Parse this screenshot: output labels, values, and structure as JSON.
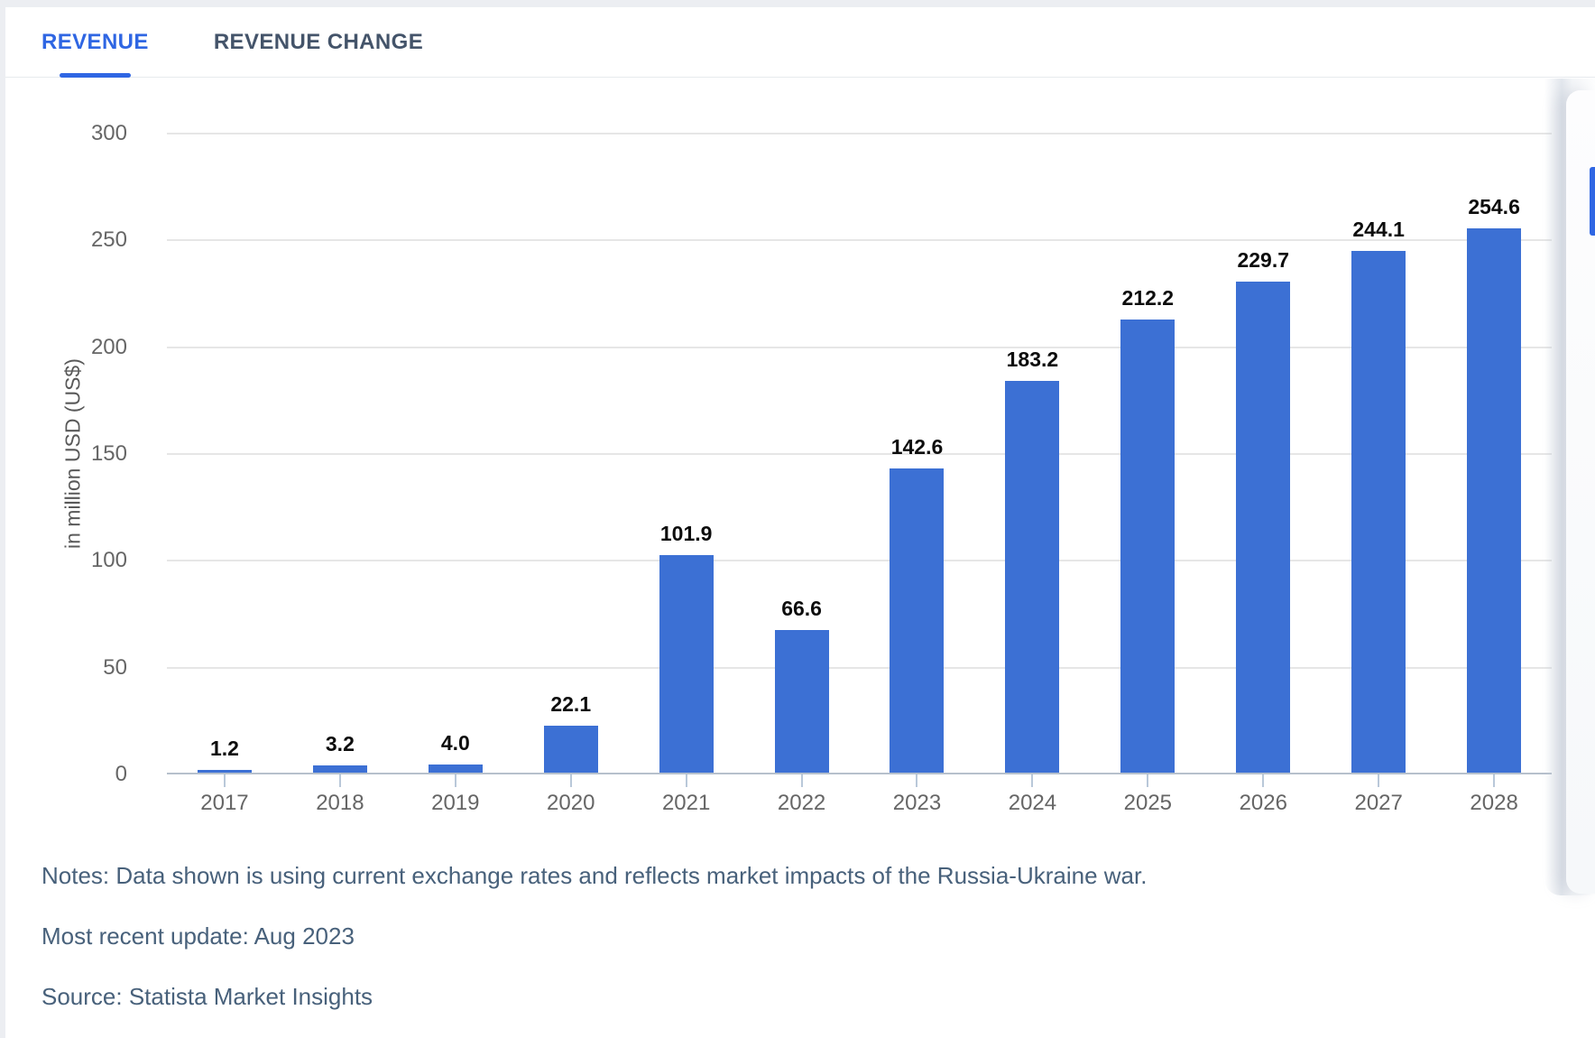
{
  "tabs": {
    "revenue": "REVENUE",
    "revenue_change": "REVENUE CHANGE"
  },
  "chart_data": {
    "type": "bar",
    "title": "",
    "categories": [
      "2017",
      "2018",
      "2019",
      "2020",
      "2021",
      "2022",
      "2023",
      "2024",
      "2025",
      "2026",
      "2027",
      "2028"
    ],
    "values": [
      1.2,
      3.2,
      4.0,
      22.1,
      101.9,
      66.6,
      142.6,
      183.2,
      212.2,
      229.7,
      244.1,
      254.6
    ],
    "value_labels": [
      "1.2",
      "3.2",
      "4.0",
      "22.1",
      "101.9",
      "66.6",
      "142.6",
      "183.2",
      "212.2",
      "229.7",
      "244.1",
      "254.6"
    ],
    "xlabel": "",
    "ylabel": "in million USD (US$)",
    "y_ticks": [
      0,
      50,
      100,
      150,
      200,
      250,
      300
    ],
    "ylim": [
      0,
      300
    ],
    "grid": "horizontal",
    "legend": "none",
    "bar_color": "#3C70D4"
  },
  "footer": {
    "notes_line": "Notes: Data shown is using current exchange rates and reflects market impacts of the Russia-Ukraine war.",
    "update_line": "Most recent update: Aug 2023",
    "source_line": "Source: Statista Market Insights"
  },
  "colors": {
    "accent": "#2F66E3",
    "bar": "#3C70D4",
    "tab_inactive": "#44546A",
    "notes_text": "#48617B",
    "tick_label": "#666666",
    "grid_line": "#E6E6E6",
    "axis_line": "#B6C0CC"
  }
}
